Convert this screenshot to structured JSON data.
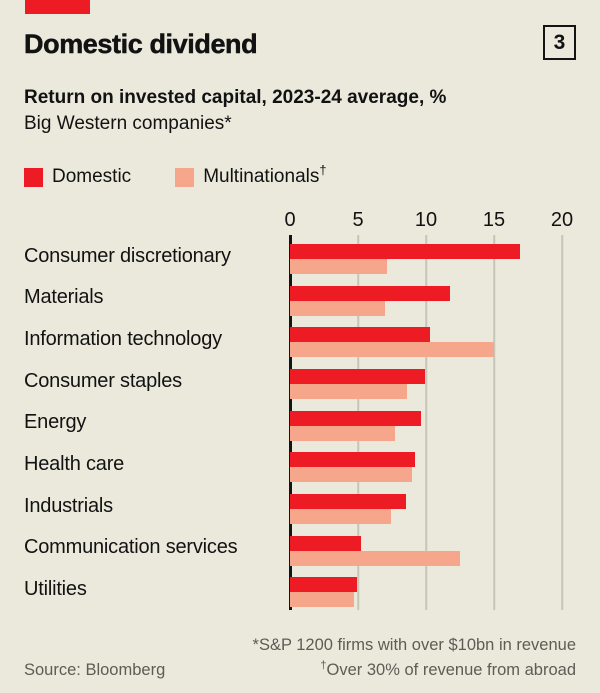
{
  "colors": {
    "background": "#EAE9DC",
    "brand_red": "#ED1C24",
    "domestic": "#ED1C24",
    "multinationals": "#F6A68A",
    "gridline": "#C6C5B8",
    "axis": "#141414",
    "footer_text": "#5D5C55"
  },
  "header": {
    "title": "Domestic dividend",
    "badge": "3",
    "subtitle_bold": "Return on invested capital, 2023-24 average, %",
    "subtitle_light": "Big Western companies*"
  },
  "legend": {
    "items": [
      {
        "label": "Domestic",
        "sup": "",
        "color": "#ED1C24"
      },
      {
        "label": "Multinationals",
        "sup": "†",
        "color": "#F6A68A"
      }
    ]
  },
  "chart_data": {
    "type": "bar",
    "orientation": "horizontal",
    "title": "Domestic dividend",
    "subtitle": "Return on invested capital, 2023-24 average, %",
    "units": "Big Western companies*",
    "xlim": [
      0,
      20
    ],
    "xticks": [
      "0",
      "5",
      "10",
      "15",
      "20"
    ],
    "xtick_values": [
      0,
      5,
      10,
      15,
      20
    ],
    "grid": true,
    "legend_position": "top",
    "categories": [
      "Consumer discretionary",
      "Materials",
      "Information technology",
      "Consumer staples",
      "Energy",
      "Health care",
      "Industrials",
      "Communication services",
      "Utilities"
    ],
    "series": [
      {
        "name": "Domestic",
        "color": "#ED1C24",
        "values": [
          16.9,
          11.8,
          10.3,
          9.9,
          9.6,
          9.2,
          8.5,
          5.2,
          4.9
        ]
      },
      {
        "name": "Multinationals",
        "color": "#F6A68A",
        "values": [
          7.1,
          7.0,
          15.0,
          8.6,
          7.7,
          9.0,
          7.4,
          12.5,
          4.7
        ]
      }
    ]
  },
  "footer": {
    "note1": "*S&P 1200 firms with over $10bn in revenue",
    "note2_sup": "†",
    "note2_text": "Over 30% of revenue from abroad",
    "source": "Source: Bloomberg"
  }
}
